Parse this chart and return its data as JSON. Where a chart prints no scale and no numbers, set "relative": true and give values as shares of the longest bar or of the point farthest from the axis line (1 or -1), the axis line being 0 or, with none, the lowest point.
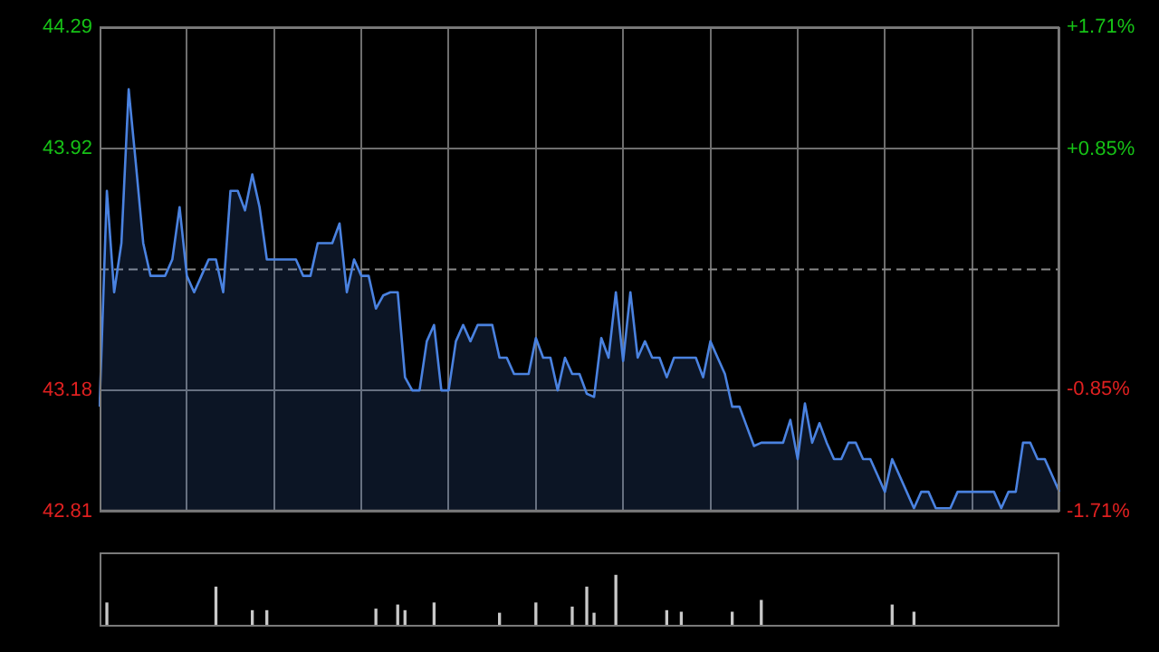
{
  "chart_data": [
    {
      "type": "area",
      "tick_labels": "y",
      "grid": true,
      "legend": false,
      "marker": "none",
      "line_style": "solid",
      "categories": [
        null,
        null,
        null,
        null,
        null,
        null,
        null,
        null,
        null,
        null,
        null,
        null,
        null,
        null,
        null,
        null,
        null,
        null,
        null,
        null,
        null,
        null,
        null,
        null,
        null,
        null,
        null,
        null,
        null,
        null,
        null,
        null,
        null,
        null,
        null,
        null,
        null,
        null,
        null,
        null,
        null,
        null,
        null,
        null,
        null,
        null,
        null,
        null,
        null,
        null,
        null,
        null,
        null,
        null,
        null,
        null,
        null,
        null,
        null,
        null,
        null,
        null,
        null,
        null,
        null,
        null,
        null,
        null,
        null,
        null,
        null,
        null,
        null,
        null,
        null,
        null,
        null,
        null,
        null,
        null,
        null,
        null,
        null,
        null,
        null,
        null,
        null,
        null,
        null,
        null,
        null,
        null,
        null,
        null,
        null,
        null,
        null,
        null,
        null,
        null,
        null,
        null,
        null,
        null,
        null,
        null,
        null,
        null,
        null,
        null,
        null,
        null,
        null,
        null,
        null,
        null,
        null,
        null,
        null,
        null,
        null,
        null,
        null,
        null,
        null,
        null,
        null,
        null,
        null,
        null,
        null,
        null,
        null
      ],
      "ylim": [
        42.81,
        44.29
      ],
      "yticks": [
        42.81,
        43.18,
        43.92,
        44.29
      ],
      "y2lim": [
        -1.71,
        1.71
      ],
      "y2ticks": [
        {
          "value": -1.71,
          "label": "-1.71%"
        },
        {
          "value": -0.85,
          "label": "-0.85%"
        },
        {
          "value": 0.85,
          "label": "+0.85%"
        },
        {
          "value": 1.71,
          "label": "+1.71%"
        }
      ],
      "ref_lines": [
        {
          "axis": "y",
          "value": 43.55,
          "color": "#8a8a8a",
          "line_style": "dashed"
        }
      ],
      "series": [
        {
          "color": "#4a82e0",
          "values": [
            43.13,
            43.79,
            43.48,
            43.63,
            44.1,
            43.87,
            43.63,
            43.53,
            43.53,
            43.53,
            43.58,
            43.74,
            43.53,
            43.48,
            43.53,
            43.58,
            43.58,
            43.48,
            43.79,
            43.79,
            43.73,
            43.84,
            43.74,
            43.58,
            43.58,
            43.58,
            43.58,
            43.58,
            43.53,
            43.53,
            43.63,
            43.63,
            43.63,
            43.69,
            43.48,
            43.58,
            43.53,
            43.53,
            43.43,
            43.47,
            43.48,
            43.48,
            43.22,
            43.18,
            43.18,
            43.33,
            43.38,
            43.18,
            43.18,
            43.33,
            43.38,
            43.33,
            43.38,
            43.38,
            43.38,
            43.28,
            43.28,
            43.23,
            43.23,
            43.23,
            43.34,
            43.28,
            43.28,
            43.18,
            43.28,
            43.23,
            43.23,
            43.17,
            43.16,
            43.34,
            43.28,
            43.48,
            43.27,
            43.48,
            43.28,
            43.33,
            43.28,
            43.28,
            43.22,
            43.28,
            43.28,
            43.28,
            43.28,
            43.22,
            43.33,
            43.28,
            43.23,
            43.13,
            43.13,
            43.07,
            43.01,
            43.02,
            43.02,
            43.02,
            43.02,
            43.09,
            42.97,
            43.14,
            43.02,
            43.08,
            43.02,
            42.97,
            42.97,
            43.02,
            43.02,
            42.97,
            42.97,
            42.92,
            42.87,
            42.97,
            42.92,
            42.87,
            42.82,
            42.87,
            42.87,
            42.82,
            42.82,
            42.82,
            42.87,
            42.87,
            42.87,
            42.87,
            42.87,
            42.87,
            42.82,
            42.87,
            42.87,
            43.02,
            43.02,
            42.97,
            42.97,
            42.92,
            42.87
          ]
        }
      ]
    },
    {
      "type": "bar",
      "relative": true,
      "tick_labels": false,
      "legend": false,
      "categories": [
        null,
        null,
        null,
        null,
        null,
        null,
        null,
        null,
        null,
        null,
        null,
        null,
        null,
        null,
        null,
        null,
        null,
        null,
        null,
        null,
        null,
        null,
        null,
        null,
        null,
        null,
        null,
        null,
        null,
        null,
        null,
        null,
        null,
        null,
        null,
        null,
        null,
        null,
        null,
        null,
        null,
        null,
        null,
        null,
        null,
        null,
        null,
        null,
        null,
        null,
        null,
        null,
        null,
        null,
        null,
        null,
        null,
        null,
        null,
        null,
        null,
        null,
        null,
        null,
        null,
        null,
        null,
        null,
        null,
        null,
        null,
        null,
        null,
        null,
        null,
        null,
        null,
        null,
        null,
        null,
        null,
        null,
        null,
        null,
        null,
        null,
        null,
        null,
        null,
        null,
        null,
        null,
        null,
        null,
        null,
        null,
        null,
        null,
        null,
        null,
        null,
        null,
        null,
        null,
        null,
        null,
        null,
        null,
        null,
        null,
        null,
        null,
        null,
        null,
        null,
        null,
        null,
        null,
        null,
        null,
        null,
        null,
        null,
        null,
        null,
        null,
        null,
        null,
        null,
        null,
        null,
        null,
        null
      ],
      "series": [
        {
          "color": "#c8c8c8",
          "values": [
            null,
            0.46,
            null,
            null,
            null,
            null,
            null,
            null,
            null,
            null,
            null,
            null,
            null,
            null,
            null,
            null,
            0.77,
            null,
            null,
            null,
            null,
            0.31,
            null,
            0.31,
            null,
            null,
            null,
            null,
            null,
            null,
            null,
            null,
            null,
            null,
            null,
            null,
            null,
            null,
            0.34,
            null,
            null,
            0.42,
            0.31,
            null,
            null,
            null,
            0.46,
            null,
            null,
            null,
            null,
            null,
            null,
            null,
            null,
            0.26,
            null,
            null,
            null,
            null,
            0.46,
            null,
            null,
            null,
            null,
            0.38,
            null,
            0.77,
            0.26,
            null,
            null,
            1,
            null,
            null,
            null,
            null,
            null,
            null,
            0.31,
            null,
            0.28,
            null,
            null,
            null,
            null,
            null,
            null,
            0.28,
            null,
            null,
            null,
            0.51,
            null,
            null,
            null,
            null,
            null,
            null,
            null,
            null,
            null,
            null,
            null,
            null,
            null,
            null,
            null,
            null,
            null,
            0.42,
            null,
            null,
            0.28,
            null,
            null,
            null,
            null,
            null,
            null,
            null,
            null,
            null,
            null,
            null,
            null,
            null,
            null,
            null,
            null,
            null,
            null,
            null,
            null
          ]
        }
      ]
    }
  ]
}
